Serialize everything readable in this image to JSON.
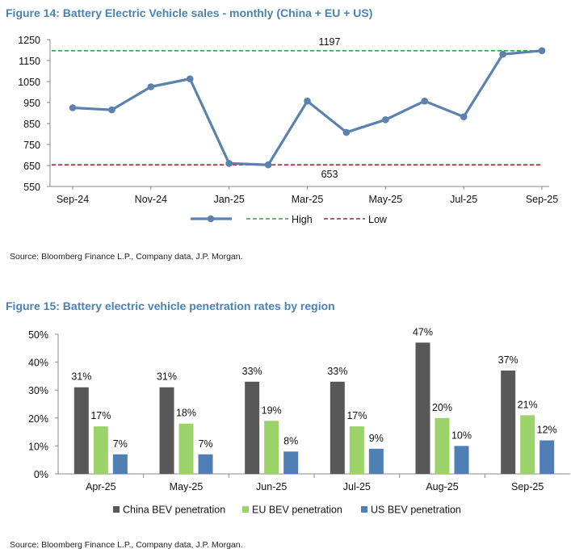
{
  "chart_data": [
    {
      "type": "line",
      "title": "Figure 14: Battery Electric Vehicle sales - monthly (China + EU + US)",
      "source": "Source: Bloomberg Finance L.P., Company data, J.P. Morgan.",
      "x": [
        "Sep-24",
        "Oct-24",
        "Nov-24",
        "Dec-24",
        "Jan-25",
        "Feb-25",
        "Mar-25",
        "Apr-25",
        "May-25",
        "Jun-25",
        "Jul-25",
        "Aug-25",
        "Sep-25"
      ],
      "x_tick_labels": [
        "Sep-24",
        "Nov-24",
        "Jan-25",
        "Mar-25",
        "May-25",
        "Jul-25",
        "Sep-25"
      ],
      "series": [
        {
          "name": "",
          "values": [
            925,
            915,
            1025,
            1063,
            660,
            653,
            957,
            808,
            868,
            957,
            882,
            1180,
            1197
          ],
          "color": "#5b82ae"
        }
      ],
      "reference_lines": [
        {
          "name": "High",
          "value": 1197,
          "label": "1197",
          "color": "#3a9a4a"
        },
        {
          "name": "Low",
          "value": 653,
          "label": "653",
          "color": "#a02828"
        }
      ],
      "yticks": [
        "550",
        "650",
        "750",
        "850",
        "950",
        "1050",
        "1150",
        "1250"
      ],
      "ylim": [
        550,
        1250
      ],
      "legend": {
        "position": "bottom",
        "items": [
          "",
          "High",
          "Low"
        ]
      }
    },
    {
      "type": "bar",
      "title": "Figure 15: Battery electric vehicle penetration rates by region",
      "source": "Source: Bloomberg Finance L.P., Company data, J.P. Morgan.",
      "categories": [
        "Apr-25",
        "May-25",
        "Jun-25",
        "Jul-25",
        "Aug-25",
        "Sep-25"
      ],
      "series": [
        {
          "name": "China BEV penetration",
          "values": [
            31,
            31,
            33,
            33,
            47,
            37
          ],
          "labels": [
            "31%",
            "31%",
            "33%",
            "33%",
            "47%",
            "37%"
          ],
          "color": "#585858"
        },
        {
          "name": "EU BEV penetration",
          "values": [
            17,
            18,
            19,
            17,
            20,
            21
          ],
          "labels": [
            "17%",
            "18%",
            "19%",
            "17%",
            "20%",
            "21%"
          ],
          "color": "#9bd36a"
        },
        {
          "name": "US BEV penetration",
          "values": [
            7,
            7,
            8,
            9,
            10,
            12
          ],
          "labels": [
            "7%",
            "7%",
            "8%",
            "9%",
            "10%",
            "12%"
          ],
          "color": "#4f7fb5"
        }
      ],
      "yticks": [
        "0%",
        "10%",
        "20%",
        "30%",
        "40%",
        "50%"
      ],
      "ylim": [
        0,
        50
      ],
      "legend": {
        "position": "bottom"
      }
    }
  ]
}
